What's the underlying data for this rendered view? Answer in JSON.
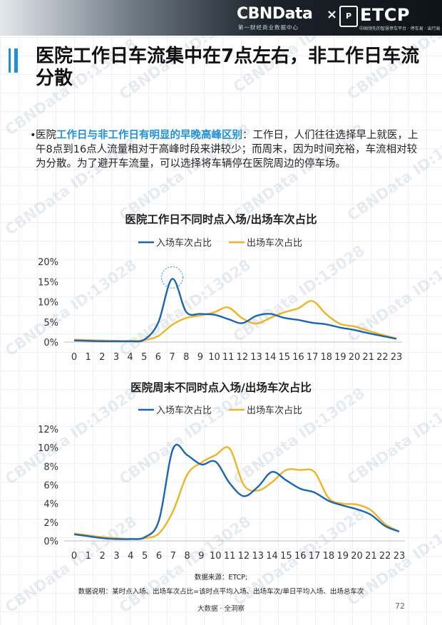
{
  "header": {
    "brand": "CBNData",
    "brand_sub": "第一财经商业数据中心",
    "times": "×",
    "etcp_box": "ETCP",
    "etcp": "ETCP",
    "etcp_sub": "中国领先的智慧停车平台 · 停车易 · 出行易"
  },
  "title": "医院工作日车流集中在7点左右，非工作日车流分散",
  "bullet": {
    "dot": "•",
    "prefix": "医院",
    "highlight": "工作日与非工作日有明显的早晚高峰区别",
    "body": "：工作日，人们往往选择早上就医，上午8点到16点人流量相对于高峰时段来讲较少；而周末，因为时间充裕，车流相对较为分散。为了避开车流量，可以选择将车辆停在医院周边的停车场。"
  },
  "watermark": "CBNData ID:13028",
  "chart_data": [
    {
      "type": "line",
      "title": "医院工作日不同时点入场/出场车次占比",
      "x": [
        0,
        1,
        2,
        3,
        4,
        5,
        6,
        7,
        8,
        9,
        10,
        11,
        12,
        13,
        14,
        15,
        16,
        17,
        18,
        19,
        20,
        21,
        22,
        23
      ],
      "x_labels": [
        "0",
        "1",
        "2",
        "3",
        "4",
        "5",
        "6",
        "7",
        "8",
        "9",
        "10",
        "11",
        "12",
        "13",
        "14",
        "15",
        "16",
        "17",
        "18",
        "19",
        "20",
        "21",
        "22",
        "23"
      ],
      "y_ticks": [
        "0%",
        "5%",
        "10%",
        "15%",
        "20%"
      ],
      "ylim": [
        0,
        20
      ],
      "legend_position": "top-center",
      "highlight_x": 7,
      "series": [
        {
          "name": "入场车次占比",
          "color": "#1a66b0",
          "values": [
            0.4,
            0.3,
            0.2,
            0.2,
            0.2,
            0.6,
            4.8,
            15.7,
            7.5,
            7.0,
            6.8,
            5.7,
            4.7,
            6.5,
            7.0,
            6.0,
            5.5,
            4.8,
            4.4,
            3.6,
            3.0,
            2.2,
            1.5,
            0.8
          ]
        },
        {
          "name": "出场车次占比",
          "color": "#f0b323",
          "values": [
            0.6,
            0.5,
            0.4,
            0.3,
            0.3,
            0.5,
            1.5,
            4.3,
            6.0,
            6.6,
            7.4,
            8.6,
            5.9,
            4.6,
            6.0,
            7.4,
            8.4,
            10.2,
            6.9,
            4.5,
            3.9,
            2.8,
            1.8,
            0.9
          ]
        }
      ]
    },
    {
      "type": "line",
      "title": "医院周末不同时点入场/出场车次占比",
      "x": [
        0,
        1,
        2,
        3,
        4,
        5,
        6,
        7,
        8,
        9,
        10,
        11,
        12,
        13,
        14,
        15,
        16,
        17,
        18,
        19,
        20,
        21,
        22,
        23
      ],
      "x_labels": [
        "0",
        "1",
        "2",
        "3",
        "4",
        "5",
        "6",
        "7",
        "8",
        "9",
        "10",
        "11",
        "12",
        "13",
        "14",
        "15",
        "16",
        "17",
        "18",
        "19",
        "20",
        "21",
        "22",
        "23"
      ],
      "y_ticks": [
        "0%",
        "2%",
        "4%",
        "6%",
        "8%",
        "10%",
        "12%"
      ],
      "ylim": [
        0,
        12
      ],
      "legend_position": "top-center",
      "series": [
        {
          "name": "入场车次占比",
          "color": "#1a66b0",
          "values": [
            0.7,
            0.5,
            0.3,
            0.2,
            0.2,
            0.4,
            2.2,
            9.9,
            9.2,
            8.2,
            8.5,
            6.2,
            4.8,
            5.8,
            7.4,
            6.5,
            5.6,
            5.2,
            4.3,
            3.8,
            3.4,
            2.8,
            1.6,
            1.0
          ]
        },
        {
          "name": "出场车次占比",
          "color": "#f0b323",
          "values": [
            0.8,
            0.6,
            0.4,
            0.3,
            0.2,
            0.3,
            0.8,
            3.2,
            7.1,
            8.4,
            9.2,
            9.9,
            6.0,
            5.4,
            6.3,
            7.6,
            7.6,
            7.4,
            4.6,
            4.0,
            3.9,
            3.3,
            1.8,
            1.0
          ]
        }
      ]
    }
  ],
  "source_note": "数据来源：ETCP;",
  "description_note": "数据说明：某时点入场、出场车次占比=该时点平均入场、出场车次/单日平均入场、出场总车次",
  "footer": "大数据 · 全洞察",
  "page_number": "72"
}
